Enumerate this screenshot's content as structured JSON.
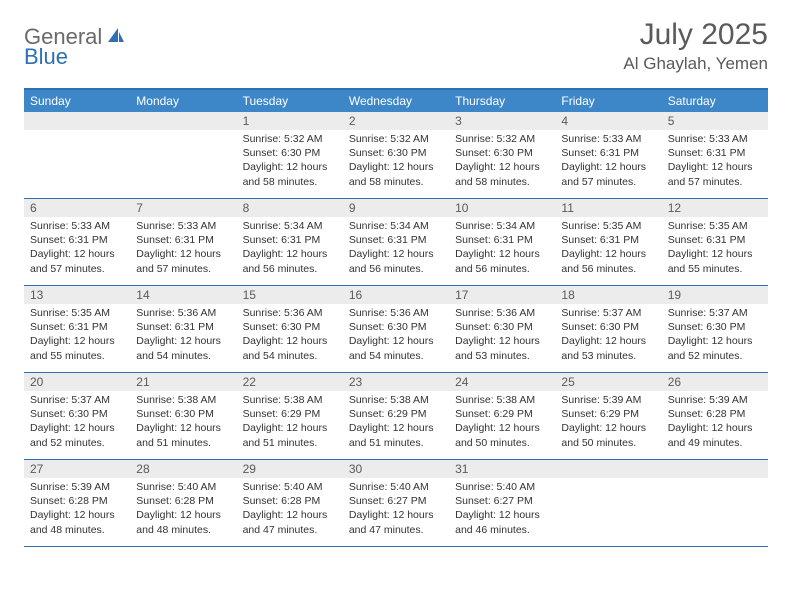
{
  "brand": {
    "part1": "General",
    "part2": "Blue"
  },
  "title": "July 2025",
  "location": "Al Ghaylah, Yemen",
  "colors": {
    "header_bg": "#3d87c9",
    "border": "#2f6fb3",
    "daynum_bg": "#ececec",
    "text": "#333333",
    "title_text": "#5a5a5a"
  },
  "dow": [
    "Sunday",
    "Monday",
    "Tuesday",
    "Wednesday",
    "Thursday",
    "Friday",
    "Saturday"
  ],
  "weeks": [
    [
      {
        "n": "",
        "sr": "",
        "ss": "",
        "dl": ""
      },
      {
        "n": "",
        "sr": "",
        "ss": "",
        "dl": ""
      },
      {
        "n": "1",
        "sr": "Sunrise: 5:32 AM",
        "ss": "Sunset: 6:30 PM",
        "dl": "Daylight: 12 hours and 58 minutes."
      },
      {
        "n": "2",
        "sr": "Sunrise: 5:32 AM",
        "ss": "Sunset: 6:30 PM",
        "dl": "Daylight: 12 hours and 58 minutes."
      },
      {
        "n": "3",
        "sr": "Sunrise: 5:32 AM",
        "ss": "Sunset: 6:30 PM",
        "dl": "Daylight: 12 hours and 58 minutes."
      },
      {
        "n": "4",
        "sr": "Sunrise: 5:33 AM",
        "ss": "Sunset: 6:31 PM",
        "dl": "Daylight: 12 hours and 57 minutes."
      },
      {
        "n": "5",
        "sr": "Sunrise: 5:33 AM",
        "ss": "Sunset: 6:31 PM",
        "dl": "Daylight: 12 hours and 57 minutes."
      }
    ],
    [
      {
        "n": "6",
        "sr": "Sunrise: 5:33 AM",
        "ss": "Sunset: 6:31 PM",
        "dl": "Daylight: 12 hours and 57 minutes."
      },
      {
        "n": "7",
        "sr": "Sunrise: 5:33 AM",
        "ss": "Sunset: 6:31 PM",
        "dl": "Daylight: 12 hours and 57 minutes."
      },
      {
        "n": "8",
        "sr": "Sunrise: 5:34 AM",
        "ss": "Sunset: 6:31 PM",
        "dl": "Daylight: 12 hours and 56 minutes."
      },
      {
        "n": "9",
        "sr": "Sunrise: 5:34 AM",
        "ss": "Sunset: 6:31 PM",
        "dl": "Daylight: 12 hours and 56 minutes."
      },
      {
        "n": "10",
        "sr": "Sunrise: 5:34 AM",
        "ss": "Sunset: 6:31 PM",
        "dl": "Daylight: 12 hours and 56 minutes."
      },
      {
        "n": "11",
        "sr": "Sunrise: 5:35 AM",
        "ss": "Sunset: 6:31 PM",
        "dl": "Daylight: 12 hours and 56 minutes."
      },
      {
        "n": "12",
        "sr": "Sunrise: 5:35 AM",
        "ss": "Sunset: 6:31 PM",
        "dl": "Daylight: 12 hours and 55 minutes."
      }
    ],
    [
      {
        "n": "13",
        "sr": "Sunrise: 5:35 AM",
        "ss": "Sunset: 6:31 PM",
        "dl": "Daylight: 12 hours and 55 minutes."
      },
      {
        "n": "14",
        "sr": "Sunrise: 5:36 AM",
        "ss": "Sunset: 6:31 PM",
        "dl": "Daylight: 12 hours and 54 minutes."
      },
      {
        "n": "15",
        "sr": "Sunrise: 5:36 AM",
        "ss": "Sunset: 6:30 PM",
        "dl": "Daylight: 12 hours and 54 minutes."
      },
      {
        "n": "16",
        "sr": "Sunrise: 5:36 AM",
        "ss": "Sunset: 6:30 PM",
        "dl": "Daylight: 12 hours and 54 minutes."
      },
      {
        "n": "17",
        "sr": "Sunrise: 5:36 AM",
        "ss": "Sunset: 6:30 PM",
        "dl": "Daylight: 12 hours and 53 minutes."
      },
      {
        "n": "18",
        "sr": "Sunrise: 5:37 AM",
        "ss": "Sunset: 6:30 PM",
        "dl": "Daylight: 12 hours and 53 minutes."
      },
      {
        "n": "19",
        "sr": "Sunrise: 5:37 AM",
        "ss": "Sunset: 6:30 PM",
        "dl": "Daylight: 12 hours and 52 minutes."
      }
    ],
    [
      {
        "n": "20",
        "sr": "Sunrise: 5:37 AM",
        "ss": "Sunset: 6:30 PM",
        "dl": "Daylight: 12 hours and 52 minutes."
      },
      {
        "n": "21",
        "sr": "Sunrise: 5:38 AM",
        "ss": "Sunset: 6:30 PM",
        "dl": "Daylight: 12 hours and 51 minutes."
      },
      {
        "n": "22",
        "sr": "Sunrise: 5:38 AM",
        "ss": "Sunset: 6:29 PM",
        "dl": "Daylight: 12 hours and 51 minutes."
      },
      {
        "n": "23",
        "sr": "Sunrise: 5:38 AM",
        "ss": "Sunset: 6:29 PM",
        "dl": "Daylight: 12 hours and 51 minutes."
      },
      {
        "n": "24",
        "sr": "Sunrise: 5:38 AM",
        "ss": "Sunset: 6:29 PM",
        "dl": "Daylight: 12 hours and 50 minutes."
      },
      {
        "n": "25",
        "sr": "Sunrise: 5:39 AM",
        "ss": "Sunset: 6:29 PM",
        "dl": "Daylight: 12 hours and 50 minutes."
      },
      {
        "n": "26",
        "sr": "Sunrise: 5:39 AM",
        "ss": "Sunset: 6:28 PM",
        "dl": "Daylight: 12 hours and 49 minutes."
      }
    ],
    [
      {
        "n": "27",
        "sr": "Sunrise: 5:39 AM",
        "ss": "Sunset: 6:28 PM",
        "dl": "Daylight: 12 hours and 48 minutes."
      },
      {
        "n": "28",
        "sr": "Sunrise: 5:40 AM",
        "ss": "Sunset: 6:28 PM",
        "dl": "Daylight: 12 hours and 48 minutes."
      },
      {
        "n": "29",
        "sr": "Sunrise: 5:40 AM",
        "ss": "Sunset: 6:28 PM",
        "dl": "Daylight: 12 hours and 47 minutes."
      },
      {
        "n": "30",
        "sr": "Sunrise: 5:40 AM",
        "ss": "Sunset: 6:27 PM",
        "dl": "Daylight: 12 hours and 47 minutes."
      },
      {
        "n": "31",
        "sr": "Sunrise: 5:40 AM",
        "ss": "Sunset: 6:27 PM",
        "dl": "Daylight: 12 hours and 46 minutes."
      },
      {
        "n": "",
        "sr": "",
        "ss": "",
        "dl": ""
      },
      {
        "n": "",
        "sr": "",
        "ss": "",
        "dl": ""
      }
    ]
  ]
}
